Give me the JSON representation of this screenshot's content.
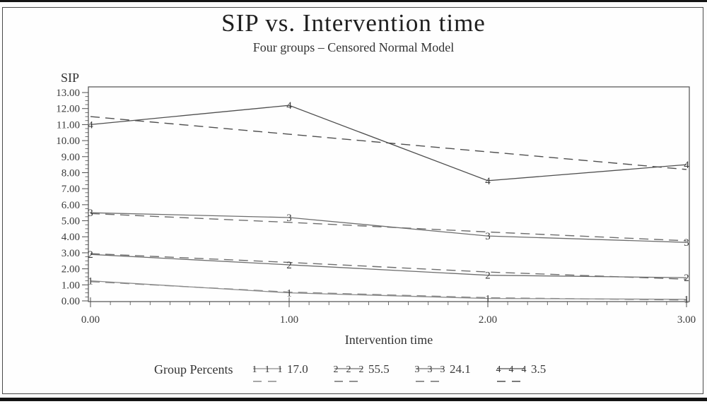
{
  "page": {
    "title": "SIP vs. Intervention time",
    "subtitle": "Four groups – Censored Normal Model"
  },
  "chart_data": {
    "type": "line",
    "title": "SIP vs. Intervention time",
    "subtitle": "Four groups – Censored Normal Model",
    "xlabel": "Intervention time",
    "ylabel": "SIP",
    "legend_title": "Group Percents",
    "x": [
      0,
      1,
      2,
      3
    ],
    "x_tick_labels": [
      "0.00",
      "1.00",
      "2.00",
      "3.00"
    ],
    "y_tick_labels": [
      "0.00",
      "1.00",
      "2.00",
      "3.00",
      "4.00",
      "5.00",
      "6.00",
      "7.00",
      "8.00",
      "9.00",
      "10.00",
      "11.00",
      "12.00",
      "13.00"
    ],
    "xlim": [
      0,
      3
    ],
    "ylim": [
      0,
      13
    ],
    "grid": false,
    "legend_position": "bottom",
    "series_styles": {
      "observed": "solid with digit markers",
      "predicted": "dashed"
    },
    "groups": [
      {
        "marker": "1",
        "percent": "17.0",
        "color": "#8a8a8a",
        "observed": [
          1.25,
          0.5,
          0.15,
          0.1
        ],
        "predicted": [
          1.2,
          0.55,
          0.2,
          0.05
        ]
      },
      {
        "marker": "2",
        "percent": "55.5",
        "color": "#6e6e6e",
        "observed": [
          2.9,
          2.25,
          1.6,
          1.45
        ],
        "predicted": [
          2.95,
          2.4,
          1.8,
          1.35
        ]
      },
      {
        "marker": "3",
        "percent": "24.1",
        "color": "#6e6e6e",
        "observed": [
          5.5,
          5.2,
          4.05,
          3.65
        ],
        "predicted": [
          5.45,
          4.9,
          4.3,
          3.75
        ]
      },
      {
        "marker": "4",
        "percent": "3.5",
        "color": "#4f4f4f",
        "observed": [
          11.0,
          12.2,
          7.5,
          8.5
        ],
        "predicted": [
          11.5,
          10.4,
          9.3,
          8.2
        ]
      }
    ],
    "colors": {
      "axis": "#4f4f4f",
      "line": "#6e6e6e",
      "text": "#3a3a3a",
      "background": "#fefefe"
    }
  }
}
